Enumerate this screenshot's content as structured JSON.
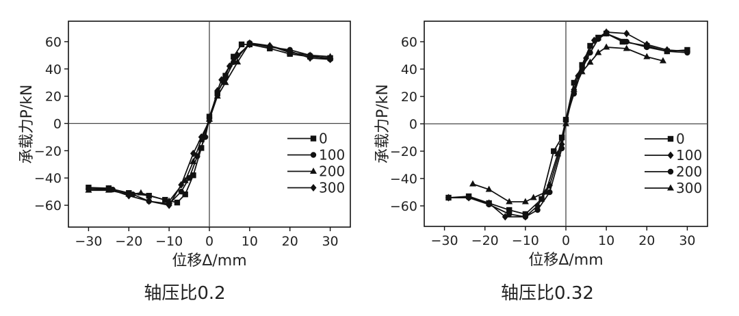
{
  "chart_data": [
    {
      "type": "line",
      "title": "轴压比0.2",
      "xlabel": "位移Δ/mm",
      "ylabel": "承载力P/kN",
      "xlim": [
        -35,
        35
      ],
      "ylim": [
        -76,
        75
      ],
      "xticks": [
        -30,
        -20,
        -10,
        0,
        10,
        20,
        30
      ],
      "yticks": [
        -60,
        -40,
        -20,
        0,
        20,
        40,
        60
      ],
      "xtick_labels": [
        "−30",
        "−20",
        "−10",
        "0",
        "10",
        "20",
        "30"
      ],
      "ytick_labels": [
        "−60",
        "−40",
        "−20",
        "0",
        "20",
        "40",
        "60"
      ],
      "legend": [
        "0",
        "100",
        "200",
        "300"
      ],
      "legend_position": "right-center",
      "series": [
        {
          "name": "0",
          "marker": "square",
          "x": [
            -30,
            -25,
            -20,
            -15,
            -11,
            -8,
            -6,
            -4,
            -2,
            0,
            2,
            4,
            6,
            8,
            10,
            15,
            20,
            25,
            30
          ],
          "y": [
            -47,
            -47.5,
            -51,
            -53,
            -56,
            -58,
            -52,
            -38,
            -18,
            5,
            22,
            35,
            49,
            58,
            58,
            55,
            51,
            49,
            48
          ]
        },
        {
          "name": "100",
          "marker": "circle",
          "x": [
            -30,
            -24,
            -19,
            -15,
            -10,
            -7,
            -5,
            -3,
            -1,
            0,
            2,
            4,
            6,
            10,
            15,
            20,
            25,
            30
          ],
          "y": [
            -48,
            -48.5,
            -52,
            -57,
            -59,
            -50,
            -40,
            -24,
            -10,
            4,
            23,
            33,
            45,
            59,
            56,
            54,
            50,
            47
          ]
        },
        {
          "name": "200",
          "marker": "triangle",
          "x": [
            -30,
            -25,
            -20,
            -17,
            -10,
            -6,
            -4,
            -2,
            0,
            2,
            4,
            7,
            10,
            15,
            20,
            25,
            30
          ],
          "y": [
            -49,
            -49,
            -52,
            -51,
            -57,
            -42,
            -28,
            -12,
            3,
            20,
            30,
            45,
            59,
            57,
            52,
            50,
            49
          ]
        },
        {
          "name": "300",
          "marker": "diamond",
          "x": [
            -30,
            -25,
            -20,
            -15,
            -10,
            -7,
            -4,
            -2,
            0,
            2,
            3,
            5,
            7,
            10,
            15,
            20,
            25,
            30
          ],
          "y": [
            -48,
            -48,
            -53,
            -57,
            -60,
            -45,
            -22,
            -10,
            2,
            24,
            32,
            42,
            50,
            58,
            57,
            53,
            48,
            47
          ]
        }
      ]
    },
    {
      "type": "line",
      "title": "轴压比0.32",
      "xlabel": "位移Δ/mm",
      "ylabel": "承载力P/kN",
      "xlim": [
        -35,
        35
      ],
      "ylim": [
        -75,
        75
      ],
      "xticks": [
        -30,
        -20,
        -10,
        0,
        10,
        20,
        30
      ],
      "yticks": [
        -60,
        -40,
        -20,
        0,
        20,
        40,
        60
      ],
      "xtick_labels": [
        "−30",
        "−20",
        "−10",
        "0",
        "10",
        "20",
        "30"
      ],
      "ytick_labels": [
        "−60",
        "−40",
        "−20",
        "0",
        "20",
        "40",
        "60"
      ],
      "legend": [
        "0",
        "100",
        "200",
        "300"
      ],
      "legend_position": "right-center",
      "series": [
        {
          "name": "0",
          "marker": "square",
          "x": [
            -29,
            -24,
            -19,
            -14,
            -10,
            -6,
            -3,
            -1,
            0,
            2,
            4,
            6,
            8,
            10,
            14,
            20,
            25,
            30
          ],
          "y": [
            -54,
            -53,
            -58,
            -63,
            -66,
            -55,
            -20,
            -10,
            3,
            30,
            43,
            57,
            63,
            66,
            60,
            57,
            53,
            54
          ]
        },
        {
          "name": "100",
          "marker": "diamond",
          "x": [
            -29,
            -24,
            -19,
            -15,
            -10,
            -7,
            -4,
            -1,
            0,
            2,
            3,
            5,
            7,
            10,
            15,
            20,
            25,
            30
          ],
          "y": [
            -54,
            -54,
            -58,
            -68,
            -68,
            -60,
            -45,
            -15,
            2,
            25,
            35,
            48,
            61,
            67,
            66,
            58,
            54,
            53
          ]
        },
        {
          "name": "200",
          "marker": "circle",
          "x": [
            -29,
            -24,
            -19,
            -14,
            -10,
            -7,
            -4,
            -1,
            0,
            2,
            4,
            6,
            8,
            10,
            15,
            20,
            25,
            30
          ],
          "y": [
            -54,
            -54,
            -59,
            -66,
            -68,
            -63,
            -50,
            -18,
            3,
            22,
            40,
            52,
            62,
            66,
            60,
            56,
            53,
            52
          ]
        },
        {
          "name": "300",
          "marker": "triangle",
          "x": [
            -23,
            -19,
            -14,
            -10,
            -8,
            -5,
            -2,
            0,
            2,
            4,
            6,
            8,
            10,
            15,
            20,
            24
          ],
          "y": [
            -44,
            -48,
            -57,
            -57,
            -54,
            -50,
            -22,
            0,
            25,
            38,
            45,
            52,
            56,
            55,
            49,
            46
          ]
        }
      ]
    }
  ]
}
